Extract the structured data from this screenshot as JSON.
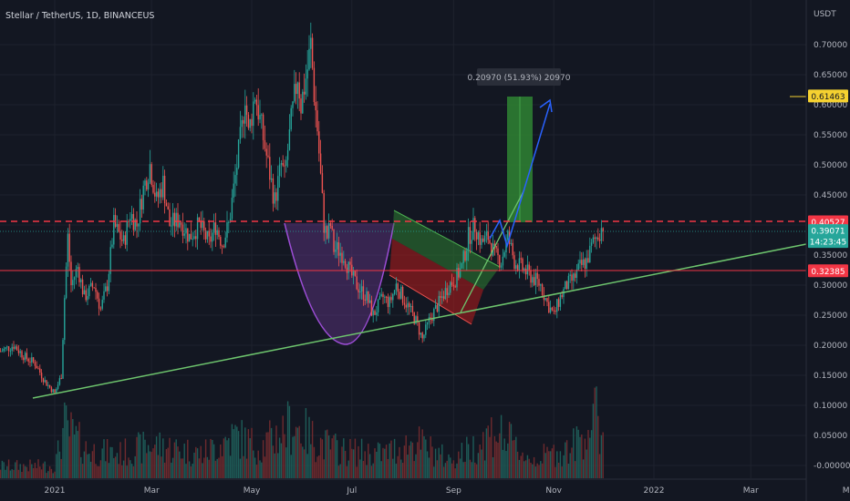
{
  "header": {
    "symbol_title": "Stellar / TetherUS, 1D, BINANCEUS"
  },
  "chart_data": {
    "type": "candlestick",
    "title": "Stellar / TetherUS, 1D, BINANCEUS",
    "currency_label": "USDT",
    "y_axis": {
      "range": [
        -0.005,
        0.78
      ],
      "ticks": [
        {
          "value": 0.7,
          "label": "0.70000"
        },
        {
          "value": 0.65,
          "label": "0.65000"
        },
        {
          "value": 0.6,
          "label": "0.60000"
        },
        {
          "value": 0.55,
          "label": "0.55000"
        },
        {
          "value": 0.5,
          "label": "0.50000"
        },
        {
          "value": 0.45,
          "label": "0.45000"
        },
        {
          "value": 0.4,
          "label": "0.40000"
        },
        {
          "value": 0.35,
          "label": "0.35000"
        },
        {
          "value": 0.3,
          "label": "0.30000"
        },
        {
          "value": 0.25,
          "label": "0.25000"
        },
        {
          "value": 0.2,
          "label": "0.20000"
        },
        {
          "value": 0.15,
          "label": "0.15000"
        },
        {
          "value": 0.1,
          "label": "0.10000"
        },
        {
          "value": 0.05,
          "label": "0.05000"
        },
        {
          "value": 0.0,
          "label": "-0.00000"
        }
      ]
    },
    "x_axis": {
      "ticks": [
        {
          "day": 0,
          "label": "2021"
        },
        {
          "day": 59,
          "label": "Mar"
        },
        {
          "day": 120,
          "label": "May"
        },
        {
          "day": 181,
          "label": "Jul"
        },
        {
          "day": 243,
          "label": "Sep"
        },
        {
          "day": 304,
          "label": "Nov"
        },
        {
          "day": 365,
          "label": "2022"
        },
        {
          "day": 424,
          "label": "Mar"
        },
        {
          "day": 485,
          "label": "May"
        }
      ]
    },
    "price_tags": [
      {
        "name": "target",
        "label": "0.61463",
        "value": 0.61463,
        "color": "#f5d130",
        "text_color": "#131722"
      },
      {
        "name": "resistance",
        "label": "0.40527",
        "value": 0.40527,
        "color": "#f23645",
        "text_color": "#ffffff"
      },
      {
        "name": "current",
        "label": "0.39071",
        "sublabel": "14:23:45",
        "value": 0.39071,
        "color": "#26a69a",
        "text_color": "#ffffff"
      },
      {
        "name": "support",
        "label": "0.32385",
        "value": 0.32385,
        "color": "#f23645",
        "text_color": "#ffffff"
      }
    ],
    "measure_label": "0.20970 (51.93%) 20970",
    "price_path": [
      [
        -33,
        0.19
      ],
      [
        -25,
        0.2
      ],
      [
        -18,
        0.18
      ],
      [
        -12,
        0.17
      ],
      [
        -6,
        0.14
      ],
      [
        0,
        0.12
      ],
      [
        4,
        0.15
      ],
      [
        6,
        0.28
      ],
      [
        8,
        0.38
      ],
      [
        10,
        0.3
      ],
      [
        14,
        0.33
      ],
      [
        18,
        0.28
      ],
      [
        24,
        0.3
      ],
      [
        28,
        0.26
      ],
      [
        32,
        0.3
      ],
      [
        36,
        0.4
      ],
      [
        42,
        0.37
      ],
      [
        46,
        0.42
      ],
      [
        50,
        0.4
      ],
      [
        54,
        0.46
      ],
      [
        58,
        0.5
      ],
      [
        62,
        0.44
      ],
      [
        66,
        0.47
      ],
      [
        70,
        0.4
      ],
      [
        76,
        0.41
      ],
      [
        82,
        0.38
      ],
      [
        88,
        0.4
      ],
      [
        94,
        0.37
      ],
      [
        98,
        0.4
      ],
      [
        102,
        0.37
      ],
      [
        106,
        0.4
      ],
      [
        110,
        0.48
      ],
      [
        114,
        0.56
      ],
      [
        116,
        0.62
      ],
      [
        118,
        0.55
      ],
      [
        122,
        0.62
      ],
      [
        126,
        0.56
      ],
      [
        130,
        0.5
      ],
      [
        134,
        0.44
      ],
      [
        138,
        0.5
      ],
      [
        140,
        0.48
      ],
      [
        144,
        0.57
      ],
      [
        148,
        0.65
      ],
      [
        150,
        0.6
      ],
      [
        154,
        0.66
      ],
      [
        156,
        0.7
      ],
      [
        158,
        0.62
      ],
      [
        160,
        0.56
      ],
      [
        162,
        0.48
      ],
      [
        164,
        0.4
      ],
      [
        166,
        0.38
      ],
      [
        168,
        0.4
      ],
      [
        170,
        0.36
      ],
      [
        172,
        0.36
      ],
      [
        176,
        0.35
      ],
      [
        180,
        0.32
      ],
      [
        184,
        0.3
      ],
      [
        190,
        0.28
      ],
      [
        194,
        0.25
      ],
      [
        200,
        0.28
      ],
      [
        204,
        0.27
      ],
      [
        208,
        0.3
      ],
      [
        212,
        0.28
      ],
      [
        216,
        0.26
      ],
      [
        220,
        0.24
      ],
      [
        224,
        0.21
      ],
      [
        228,
        0.24
      ],
      [
        232,
        0.26
      ],
      [
        236,
        0.28
      ],
      [
        240,
        0.3
      ],
      [
        244,
        0.31
      ],
      [
        248,
        0.33
      ],
      [
        252,
        0.38
      ],
      [
        256,
        0.4
      ],
      [
        260,
        0.37
      ],
      [
        264,
        0.38
      ],
      [
        268,
        0.35
      ],
      [
        272,
        0.34
      ],
      [
        276,
        0.38
      ],
      [
        280,
        0.34
      ],
      [
        284,
        0.33
      ],
      [
        288,
        0.32
      ],
      [
        292,
        0.31
      ],
      [
        296,
        0.3
      ],
      [
        300,
        0.27
      ],
      [
        304,
        0.25
      ],
      [
        308,
        0.28
      ],
      [
        312,
        0.3
      ],
      [
        316,
        0.31
      ],
      [
        320,
        0.33
      ],
      [
        324,
        0.34
      ],
      [
        328,
        0.37
      ],
      [
        332,
        0.39
      ],
      [
        334,
        0.4
      ]
    ],
    "volume_profile": [
      [
        0,
        0.02
      ],
      [
        6,
        0.085
      ],
      [
        20,
        0.045
      ],
      [
        40,
        0.04
      ],
      [
        60,
        0.055
      ],
      [
        90,
        0.04
      ],
      [
        110,
        0.07
      ],
      [
        125,
        0.05
      ],
      [
        145,
        0.09
      ],
      [
        160,
        0.06
      ],
      [
        175,
        0.045
      ],
      [
        200,
        0.04
      ],
      [
        220,
        0.06
      ],
      [
        240,
        0.03
      ],
      [
        255,
        0.05
      ],
      [
        268,
        0.08
      ],
      [
        290,
        0.03
      ],
      [
        315,
        0.05
      ],
      [
        330,
        0.1
      ],
      [
        336,
        0.05
      ]
    ]
  }
}
